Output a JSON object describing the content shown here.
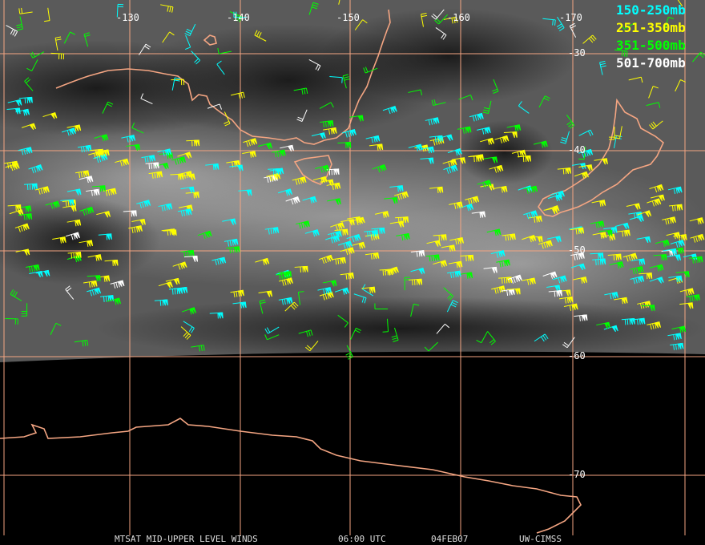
{
  "map": {
    "longitude_labels": [
      "-130",
      "-140",
      "-150",
      "-160",
      "-170"
    ],
    "latitude_labels": [
      "-30",
      "-40",
      "-50",
      "-60",
      "-70"
    ],
    "legend": [
      {
        "label": "150-250mb",
        "color": "#00ffff"
      },
      {
        "label": "251-350mb",
        "color": "#ffff00"
      },
      {
        "label": "351-500mb",
        "color": "#00ff00"
      },
      {
        "label": "501-700mb",
        "color": "#ffffff"
      }
    ],
    "footer": [
      "MTSAT MID-UPPER LEVEL WINDS",
      "06:00 UTC",
      "04FEB07",
      "UW-CIMSS"
    ]
  }
}
